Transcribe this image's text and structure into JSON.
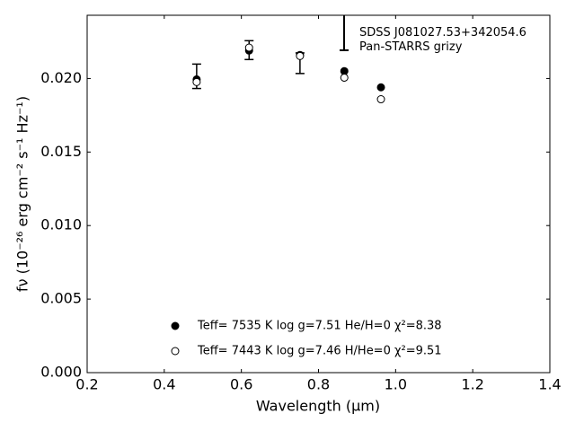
{
  "chart_data": {
    "type": "scatter",
    "xlabel": "Wavelength (μm)",
    "ylabel": "fν (10⁻²⁶ erg cm⁻² s⁻¹ Hz⁻¹)",
    "xlim": [
      0.2,
      1.4
    ],
    "ylim": [
      0,
      0.0243
    ],
    "xticks": [
      0.2,
      0.4,
      0.6,
      0.8,
      {
        "value": 1.0,
        "label": "1.0"
      },
      1.2,
      1.4
    ],
    "yticks": [
      {
        "value": 0,
        "label": "0.000"
      },
      {
        "value": 0.005,
        "label": "0.005"
      },
      {
        "value": 0.01,
        "label": "0.010"
      },
      {
        "value": 0.015,
        "label": "0.015"
      },
      {
        "value": 0.02,
        "label": "0.020"
      }
    ],
    "series": [
      {
        "name": "SDSS J081027.53+342054.6\nPan-STARRS grizy",
        "color": "#000000",
        "marker": "errorbar",
        "x": [
          0.484,
          0.62,
          0.752
        ],
        "values": [
          0.02015,
          0.02193,
          0.02104
        ],
        "errors": [
          0.00083,
          0.00064,
          0.0007
        ]
      },
      {
        "name": "Teff=  7535 K  log g=7.51  He/H=0  χ²=8.38",
        "color": "#000000",
        "marker": "filled",
        "x": [
          0.484,
          0.62,
          0.752,
          0.867,
          0.962
        ],
        "values": [
          0.01994,
          0.0219,
          0.0216,
          0.0205,
          0.0194
        ]
      },
      {
        "name": "Teff=  7443 K  log g=7.46  H/He=0  χ²=9.51",
        "color": "#000000",
        "marker": "open",
        "x": [
          0.484,
          0.62,
          0.752,
          0.867,
          0.962
        ],
        "values": [
          0.01976,
          0.0221,
          0.02153,
          0.02006,
          0.01859
        ]
      }
    ]
  }
}
